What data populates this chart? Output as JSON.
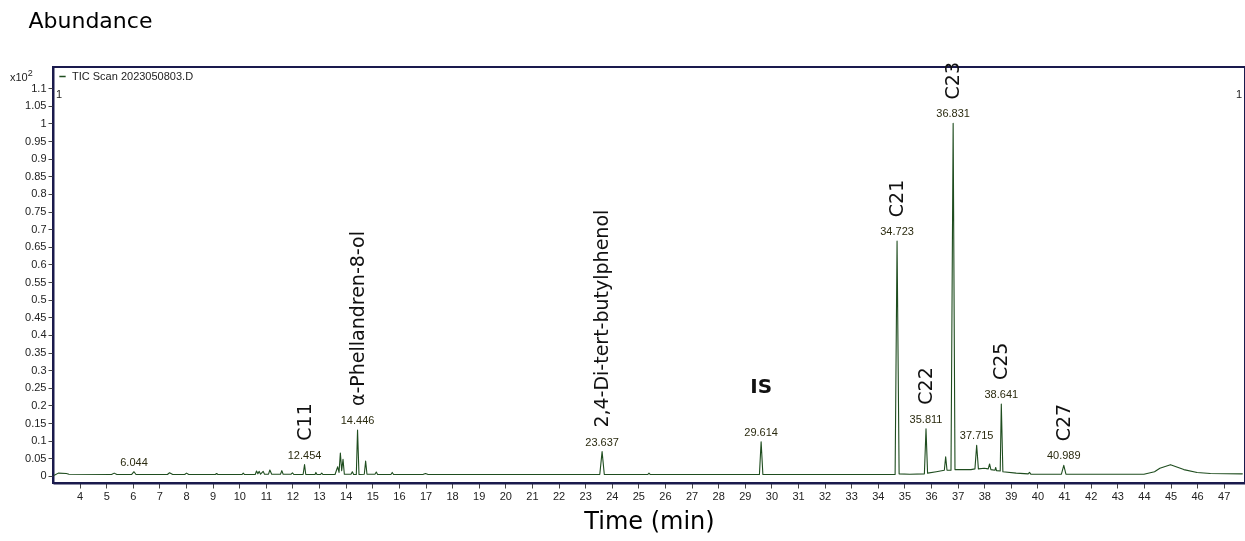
{
  "chart_data": {
    "type": "line",
    "xlabel": "Time (min)",
    "ylabel": "Abundance",
    "xlim": [
      3,
      47.8
    ],
    "ylim": [
      -0.02,
      1.16
    ],
    "xticks": [
      4,
      5,
      6,
      7,
      8,
      9,
      10,
      11,
      12,
      13,
      14,
      15,
      16,
      17,
      18,
      19,
      20,
      21,
      22,
      23,
      24,
      25,
      26,
      27,
      28,
      29,
      30,
      31,
      32,
      33,
      34,
      35,
      36,
      37,
      38,
      39,
      40,
      41,
      42,
      43,
      44,
      45,
      46,
      47
    ],
    "yticks": [
      0,
      0.05,
      0.1,
      0.15,
      0.2,
      0.25,
      0.3,
      0.35,
      0.4,
      0.45,
      0.5,
      0.55,
      0.6,
      0.65,
      0.7,
      0.75,
      0.8,
      0.85,
      0.9,
      0.95,
      1,
      1.05,
      1.1
    ],
    "legend": "top left",
    "grid": false,
    "series": [
      {
        "name": "TIC Scan 2023050803.D",
        "color": "#1f4d1f",
        "x": [
          3.05,
          3.2,
          3.5,
          3.6,
          5.2,
          5.3,
          5.4,
          5.95,
          6.044,
          6.12,
          7.3,
          7.38,
          7.5,
          7.95,
          8.02,
          8.1,
          9.1,
          9.15,
          9.2,
          10.1,
          10.15,
          10.2,
          10.6,
          10.65,
          10.7,
          10.75,
          10.8,
          10.9,
          10.95,
          11.1,
          11.15,
          11.22,
          11.55,
          11.6,
          11.65,
          11.95,
          12.0,
          12.05,
          12.4,
          12.454,
          12.5,
          12.85,
          12.88,
          12.92,
          13.05,
          13.1,
          13.15,
          13.6,
          13.7,
          13.75,
          13.8,
          13.85,
          13.9,
          13.95,
          14.2,
          14.25,
          14.3,
          14.4,
          14.446,
          14.5,
          14.7,
          14.75,
          14.8,
          15.1,
          15.15,
          15.2,
          15.7,
          15.75,
          15.8,
          16.9,
          17.0,
          17.1,
          23.55,
          23.637,
          23.72,
          25.35,
          25.4,
          25.45,
          29.55,
          29.614,
          29.68,
          34.65,
          34.723,
          34.8,
          35.2,
          35.75,
          35.811,
          35.87,
          36.2,
          36.5,
          36.55,
          36.6,
          36.75,
          36.831,
          36.9,
          37.5,
          37.65,
          37.715,
          37.78,
          38.0,
          38.15,
          38.2,
          38.25,
          38.4,
          38.43,
          38.46,
          38.6,
          38.641,
          38.7,
          39.2,
          39.65,
          39.7,
          39.75,
          40.9,
          40.989,
          41.07,
          44.0,
          44.4,
          44.6,
          45.0,
          45.5,
          46.0,
          46.5,
          47.7
        ],
        "values": [
          0.002,
          0.008,
          0.007,
          0.005,
          0.004,
          0.008,
          0.004,
          0.004,
          0.012,
          0.004,
          0.004,
          0.009,
          0.004,
          0.004,
          0.008,
          0.004,
          0.004,
          0.007,
          0.004,
          0.004,
          0.008,
          0.004,
          0.004,
          0.014,
          0.006,
          0.013,
          0.005,
          0.013,
          0.005,
          0.005,
          0.017,
          0.005,
          0.005,
          0.015,
          0.005,
          0.005,
          0.009,
          0.004,
          0.004,
          0.032,
          0.004,
          0.004,
          0.01,
          0.004,
          0.004,
          0.008,
          0.004,
          0.004,
          0.026,
          0.01,
          0.065,
          0.015,
          0.047,
          0.005,
          0.005,
          0.012,
          0.004,
          0.004,
          0.13,
          0.004,
          0.005,
          0.042,
          0.005,
          0.005,
          0.011,
          0.004,
          0.004,
          0.01,
          0.004,
          0.004,
          0.007,
          0.004,
          0.004,
          0.069,
          0.004,
          0.004,
          0.008,
          0.004,
          0.004,
          0.097,
          0.004,
          0.004,
          0.666,
          0.006,
          0.005,
          0.006,
          0.134,
          0.008,
          0.012,
          0.016,
          0.054,
          0.016,
          0.016,
          1.0,
          0.018,
          0.018,
          0.02,
          0.087,
          0.02,
          0.022,
          0.02,
          0.034,
          0.018,
          0.016,
          0.024,
          0.015,
          0.014,
          0.204,
          0.012,
          0.008,
          0.006,
          0.01,
          0.005,
          0.005,
          0.03,
          0.005,
          0.005,
          0.012,
          0.022,
          0.032,
          0.018,
          0.01,
          0.007,
          0.006
        ],
        "line_style": "solid"
      }
    ],
    "annotations": [
      "x10$^{2}$",
      "1",
      "1",
      {
        "text": "6.044",
        "x": 6.044,
        "y": 0.012
      },
      {
        "text": "12.454",
        "x": 12.454,
        "y": 0.032
      },
      {
        "text": "C11",
        "x": 12.454,
        "y": 0.032
      },
      {
        "text": "14.446",
        "x": 14.446,
        "y": 0.13
      },
      {
        "text": "α-Phellandren-8-ol",
        "x": 14.446,
        "y": 0.13
      },
      {
        "text": "23.637",
        "x": 23.637,
        "y": 0.069
      },
      {
        "text": "2,4-Di-tert-butylphenol",
        "x": 23.637,
        "y": 0.069
      },
      {
        "text": "29.614",
        "x": 29.614,
        "y": 0.097
      },
      {
        "text": "IS",
        "x": 29.614,
        "y": 0.097
      },
      {
        "text": "34.723",
        "x": 34.723,
        "y": 0.666
      },
      {
        "text": "C21",
        "x": 34.723,
        "y": 0.666
      },
      {
        "text": "35.811",
        "x": 35.811,
        "y": 0.134
      },
      {
        "text": "C22",
        "x": 35.811,
        "y": 0.134
      },
      {
        "text": "36.831",
        "x": 36.831,
        "y": 1.0
      },
      {
        "text": "C23",
        "x": 36.831,
        "y": 1.0
      },
      {
        "text": "37.715",
        "x": 37.715,
        "y": 0.087
      },
      {
        "text": "38.641",
        "x": 38.641,
        "y": 0.204
      },
      {
        "text": "C25",
        "x": 38.641,
        "y": 0.204
      },
      {
        "text": "40.989",
        "x": 40.989,
        "y": 0.03
      },
      {
        "text": "C27",
        "x": 40.989,
        "y": 0.03
      }
    ]
  }
}
